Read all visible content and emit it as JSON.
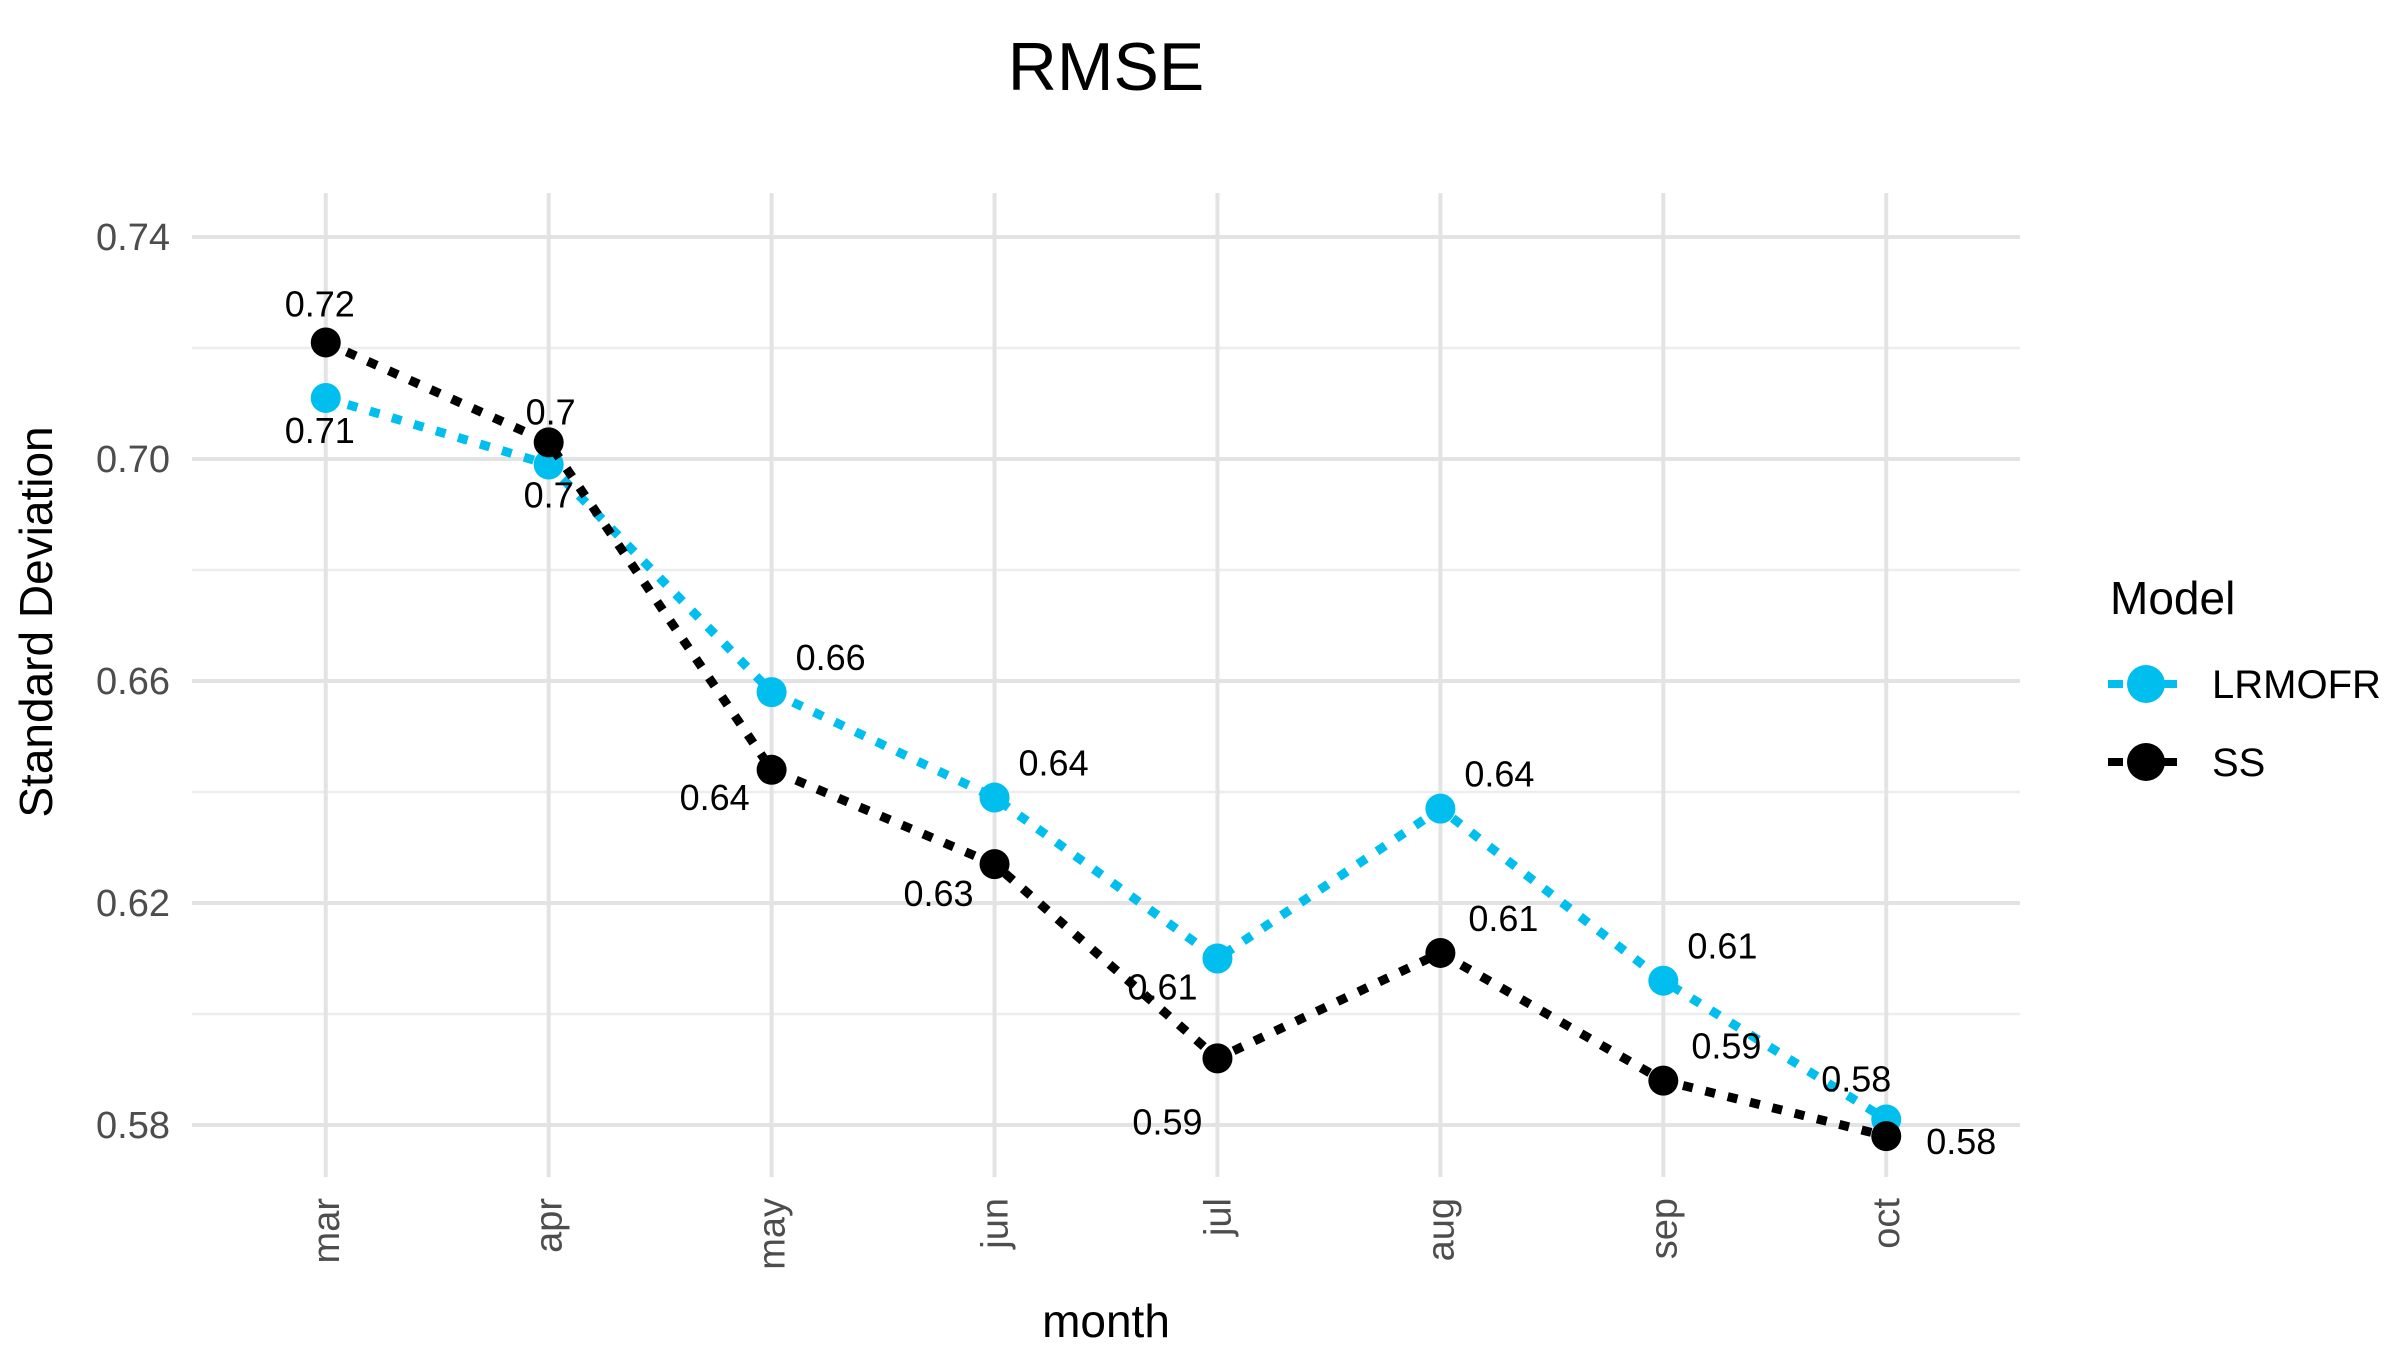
{
  "title": "RMSE",
  "axes": {
    "x": {
      "title": "month",
      "categories": [
        "mar",
        "apr",
        "may",
        "jun",
        "jul",
        "aug",
        "sep",
        "oct"
      ]
    },
    "y": {
      "title": "Standard Deviation",
      "tick_labels": [
        "0.74",
        "0.70",
        "0.66",
        "0.62",
        "0.58"
      ],
      "tick_values": [
        0.74,
        0.7,
        0.66,
        0.62,
        0.58
      ],
      "minor_values": [
        0.72,
        0.68,
        0.64,
        0.6
      ]
    }
  },
  "legend": {
    "title": "Model",
    "entries": [
      {
        "label": "LRMOFR",
        "color": "#00BFEF"
      },
      {
        "label": "SS",
        "color": "#000000"
      }
    ]
  },
  "chart_data": {
    "type": "line",
    "title": "RMSE",
    "xlabel": "month",
    "ylabel": "Standard Deviation",
    "categories": [
      "mar",
      "apr",
      "may",
      "jun",
      "jul",
      "aug",
      "sep",
      "oct"
    ],
    "ylim": [
      0.576,
      0.748
    ],
    "y_major_ticks": [
      0.58,
      0.62,
      0.66,
      0.7,
      0.74
    ],
    "grid": true,
    "legend_position": "right",
    "line_style": "dotted",
    "marker": "circle",
    "series": [
      {
        "name": "LRMOFR",
        "color": "#00BFEF",
        "values": [
          0.711,
          0.699,
          0.658,
          0.639,
          0.61,
          0.637,
          0.606,
          0.581
        ],
        "labels": [
          "0.71",
          "0.7",
          "0.66",
          "0.64",
          "0.61",
          "0.64",
          "0.61",
          "0.58"
        ],
        "label_offsets": [
          [
            -6,
            45,
            "middle"
          ],
          [
            0,
            43,
            "middle"
          ],
          [
            24,
            -22,
            "start"
          ],
          [
            24,
            -22,
            "start"
          ],
          [
            -55,
            41,
            "middle"
          ],
          [
            24,
            -22,
            "start"
          ],
          [
            24,
            -22,
            "start"
          ],
          [
            -30,
            -28,
            "middle"
          ]
        ]
      },
      {
        "name": "SS",
        "color": "#000000",
        "values": [
          0.721,
          0.703,
          0.644,
          0.627,
          0.592,
          0.611,
          0.588,
          0.578
        ],
        "labels": [
          "0.72",
          "0.7",
          "0.64",
          "0.63",
          "0.59",
          "0.61",
          "0.59",
          "0.58"
        ],
        "label_offsets": [
          [
            -6,
            -26,
            "middle"
          ],
          [
            2,
            -18,
            "middle"
          ],
          [
            -57,
            40,
            "middle"
          ],
          [
            -56,
            42,
            "middle"
          ],
          [
            -50,
            76,
            "middle"
          ],
          [
            28,
            -22,
            "start"
          ],
          [
            28,
            -22,
            "start"
          ],
          [
            40,
            18,
            "start"
          ]
        ]
      }
    ]
  },
  "style": {
    "background": "#FFFFFF",
    "grid_major": "#E3E3E3",
    "grid_minor": "#EDEDED",
    "tick_color": "#E3E3E3",
    "axis_text_color": "#4D4D4D",
    "label_text_color": "#000000"
  }
}
